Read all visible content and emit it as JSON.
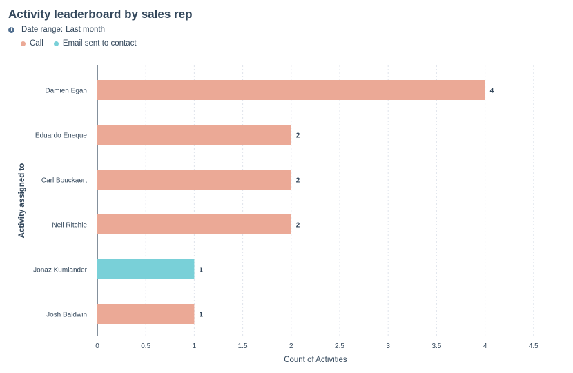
{
  "header": {
    "title": "Activity leaderboard by sales rep",
    "date_range_label": "Date range:",
    "date_range_value": "Last month"
  },
  "legend": [
    {
      "label": "Call",
      "color": "#eba996"
    },
    {
      "label": "Email sent to contact",
      "color": "#79d0d8"
    }
  ],
  "chart_data": {
    "type": "bar",
    "orientation": "horizontal",
    "title": "Activity leaderboard by sales rep",
    "xlabel": "Count of Activities",
    "ylabel": "Activity assigned to",
    "xlim": [
      0,
      4.5
    ],
    "xticks": [
      "0",
      "0.5",
      "1",
      "1.5",
      "2",
      "2.5",
      "3",
      "3.5",
      "4",
      "4.5"
    ],
    "grid": true,
    "legend_position": "top-left",
    "categories": [
      "Damien Egan",
      "Eduardo Eneque",
      "Carl Bouckaert",
      "Neil Ritchie",
      "Jonaz Kumlander",
      "Josh Baldwin"
    ],
    "values": [
      4,
      2,
      2,
      2,
      1,
      1
    ],
    "data_labels": [
      "4",
      "2",
      "2",
      "2",
      "1",
      "1"
    ],
    "series_of_bar": [
      "Call",
      "Call",
      "Call",
      "Call",
      "Email sent to contact",
      "Call"
    ],
    "colors": {
      "Call": "#eba996",
      "Email sent to contact": "#79d0d8"
    }
  }
}
